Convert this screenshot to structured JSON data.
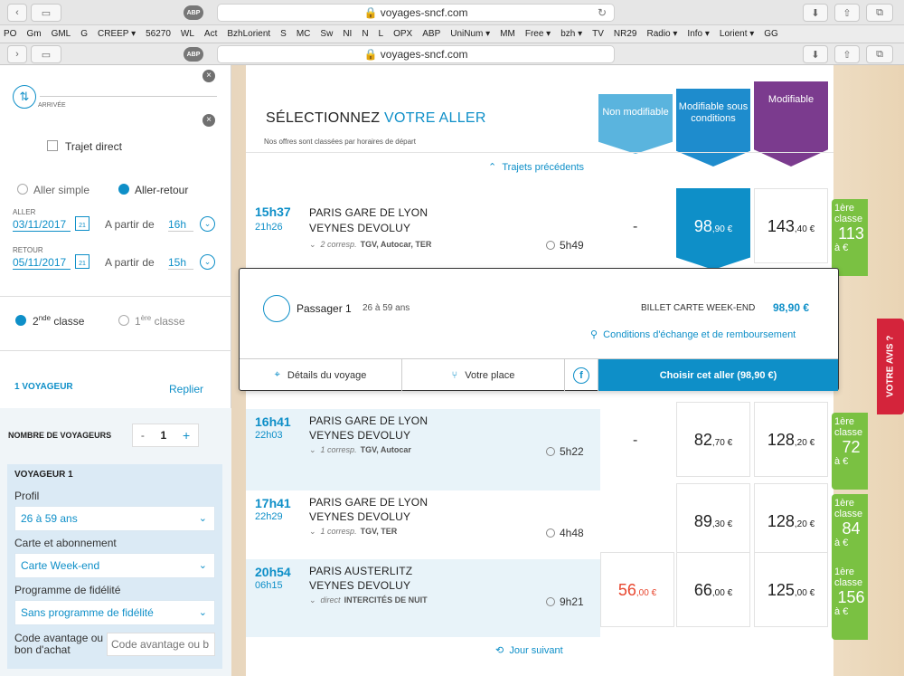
{
  "browser": {
    "url": "voyages-sncf.com",
    "abp": "ABP"
  },
  "bookmarks": [
    "PO",
    "Gm",
    "GML",
    "G",
    "CREEP ▾",
    "56270",
    "WL",
    "Act",
    "BzhLorient",
    "S",
    "MC",
    "Sw",
    "NI",
    "N",
    "L",
    "OPX",
    "ABP",
    "UniNum ▾",
    "MM",
    "Free ▾",
    "bzh ▾",
    "TV",
    "NR29",
    "Radio ▾",
    "Info ▾",
    "Lorient ▾",
    "GG"
  ],
  "sidebar": {
    "arrivee_label": "ARRIVÉE",
    "trajet_direct": "Trajet direct",
    "aller_simple": "Aller simple",
    "aller_retour": "Aller-retour",
    "aller_label": "ALLER",
    "aller_date": "03/11/2017",
    "retour_label": "RETOUR",
    "retour_date": "05/11/2017",
    "cal_day": "21",
    "a_partir": "A partir de",
    "aller_hour": "16h",
    "retour_hour": "15h",
    "classe2_num": "2",
    "classe2_sup": "nde",
    "classe2_word": "classe",
    "classe1_num": "1",
    "classe1_sup": "ère",
    "classe1_word": "classe",
    "voyageur_count": "1 VOYAGEUR",
    "replier": "Replier",
    "nombre_label": "NOMBRE DE VOYAGEURS",
    "minus": "-",
    "qty": "1",
    "plus": "+",
    "voyageur1": "VOYAGEUR 1",
    "profil_label": "Profil",
    "profil_value": "26 à 59 ans",
    "carte_label": "Carte et abonnement",
    "carte_value": "Carte Week-end",
    "fidelite_label": "Programme de fidélité",
    "fidelite_value": "Sans programme de fidélité",
    "code_label": "Code avantage ou bon d'achat",
    "code_placeholder": "Code avantage ou b"
  },
  "header": {
    "title_part1": "SÉLECTIONNEZ",
    "title_part2": "VOTRE ALLER",
    "subtitle": "Nos offres sont classées par horaires de départ",
    "prev": "Trajets précédents",
    "next": "Jour suivant",
    "col_non_modifiable": "Non modifiable",
    "col_modifiable_cond": "Modifiable sous conditions",
    "col_modifiable": "Modifiable",
    "colors": {
      "non": "#5ab4de",
      "cond": "#1e8ccd",
      "modif": "#7b3b8e"
    }
  },
  "trains": [
    {
      "dep": "15h37",
      "arr": "21h26",
      "from": "PARIS GARE DE LYON",
      "to": "VEYNES DEVOLUY",
      "corr": "2 corresp.",
      "types": "TGV, Autocar, TER",
      "dur": "5h49",
      "p1": "-",
      "p2": "98",
      "p2c": ",90 €",
      "p3": "143",
      "p3c": ",40 €",
      "first_a": "1ère classe",
      "first_b": "113",
      "first_c": "à €"
    },
    {
      "dep": "16h41",
      "arr": "22h03",
      "from": "PARIS GARE DE LYON",
      "to": "VEYNES DEVOLUY",
      "corr": "1 corresp.",
      "types": "TGV, Autocar",
      "dur": "5h22",
      "p1": "-",
      "p2": "82",
      "p2c": ",70 €",
      "p3": "128",
      "p3c": ",20 €",
      "first_a": "1ère classe",
      "first_b": "72",
      "first_c": "à €"
    },
    {
      "dep": "17h41",
      "arr": "22h29",
      "from": "PARIS GARE DE LYON",
      "to": "VEYNES DEVOLUY",
      "corr": "1 corresp.",
      "types": "TGV, TER",
      "dur": "4h48",
      "p1": "",
      "p2": "89",
      "p2c": ",30 €",
      "p3": "128",
      "p3c": ",20 €",
      "first_a": "1ère classe",
      "first_b": "84",
      "first_c": "à €"
    },
    {
      "dep": "20h54",
      "arr": "06h15",
      "from": "PARIS AUSTERLITZ",
      "to": "VEYNES DEVOLUY",
      "corr": "direct",
      "types": "INTERCITÉS DE NUIT",
      "dur": "9h21",
      "p1": "56",
      "p1c": ",00 €",
      "p2": "66",
      "p2c": ",00 €",
      "p3": "125",
      "p3c": ",00 €",
      "first_a": "1ère classe",
      "first_b": "156",
      "first_c": "à €"
    }
  ],
  "detail": {
    "passager": "Passager 1",
    "age": "26 à 59 ans",
    "billet": "BILLET CARTE WEEK-END",
    "billet_price": "98,90 €",
    "conditions": "Conditions d'échange et de remboursement",
    "details_voyage": "Détails du voyage",
    "votre_place": "Votre place",
    "choisir": "Choisir cet aller (98,90 €)"
  },
  "feedback": "VOTRE AVIS ?"
}
